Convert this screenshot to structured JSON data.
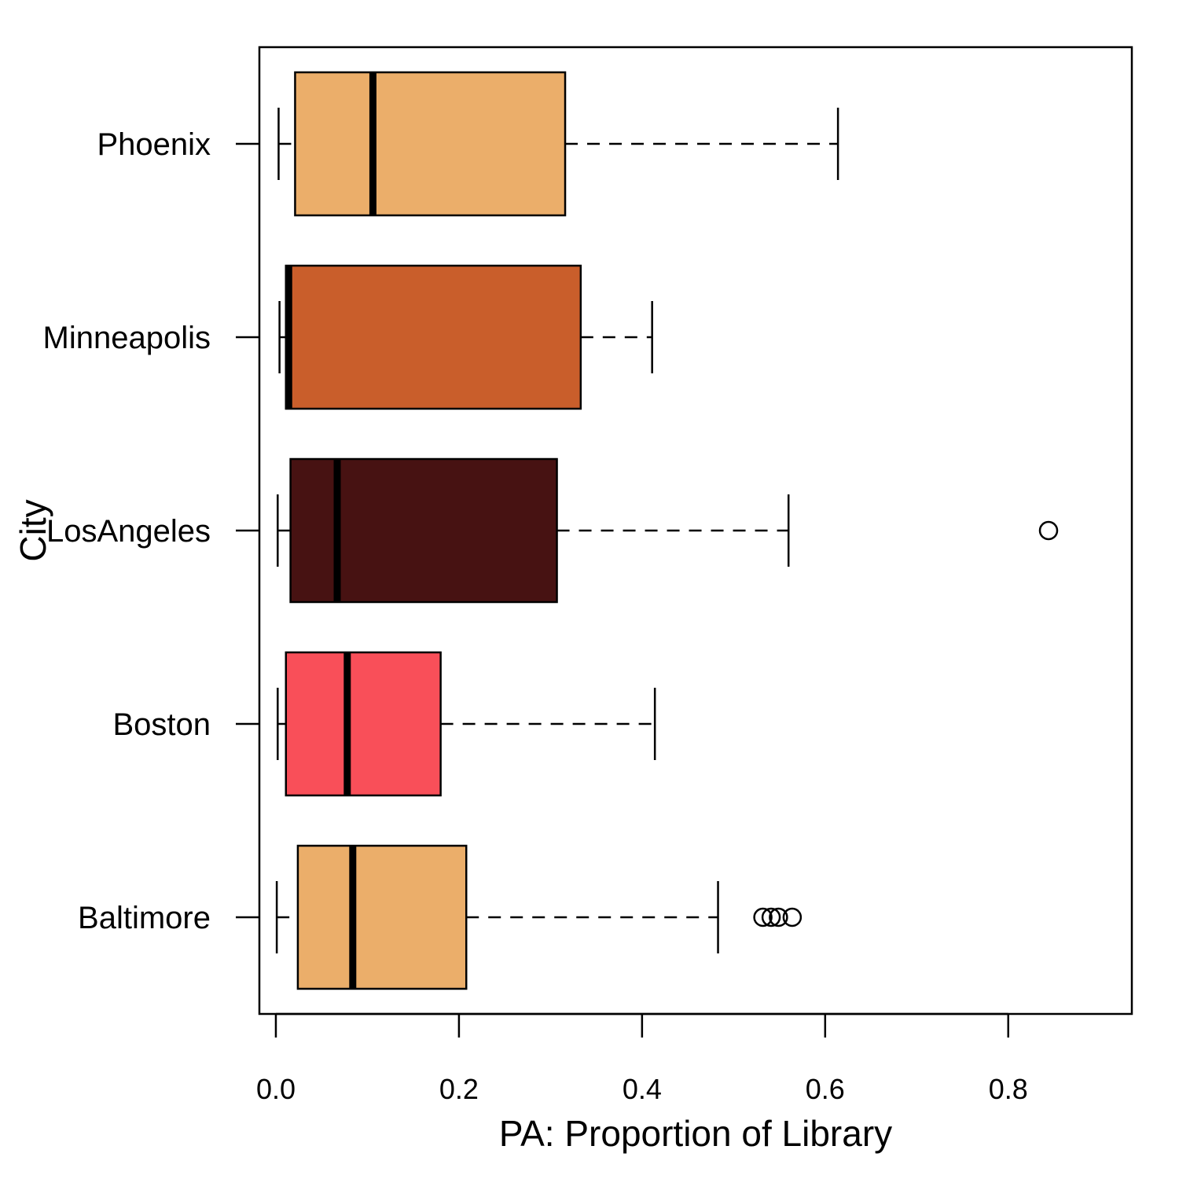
{
  "chart_data": {
    "type": "boxplot",
    "orientation": "horizontal",
    "xlabel": "PA: Proportion of Library",
    "ylabel": "City",
    "xlim": [
      -0.018,
      0.935
    ],
    "xticks": [
      0.0,
      0.2,
      0.4,
      0.6,
      0.8
    ],
    "xtick_labels": [
      "0.0",
      "0.2",
      "0.4",
      "0.6",
      "0.8"
    ],
    "grid": false,
    "legend": "none",
    "categories": [
      "Phoenix",
      "Minneapolis",
      "LosAngeles",
      "Boston",
      "Baltimore"
    ],
    "boxes": [
      {
        "name": "Phoenix",
        "color": "#ebae6a",
        "min": 0.003,
        "q1": 0.021,
        "median": 0.106,
        "q3": 0.316,
        "max": 0.614,
        "outliers": []
      },
      {
        "name": "Minneapolis",
        "color": "#c95e2b",
        "min": 0.004,
        "q1": 0.011,
        "median": 0.014,
        "q3": 0.333,
        "max": 0.411,
        "outliers": []
      },
      {
        "name": "LosAngeles",
        "color": "#471212",
        "min": 0.002,
        "q1": 0.016,
        "median": 0.067,
        "q3": 0.307,
        "max": 0.56,
        "outliers": [
          0.844
        ]
      },
      {
        "name": "Boston",
        "color": "#f94f59",
        "min": 0.002,
        "q1": 0.011,
        "median": 0.078,
        "q3": 0.18,
        "max": 0.414,
        "outliers": []
      },
      {
        "name": "Baltimore",
        "color": "#ebae6a",
        "min": 0.001,
        "q1": 0.024,
        "median": 0.084,
        "q3": 0.208,
        "max": 0.483,
        "outliers": [
          0.532,
          0.541,
          0.549,
          0.564
        ]
      }
    ]
  }
}
